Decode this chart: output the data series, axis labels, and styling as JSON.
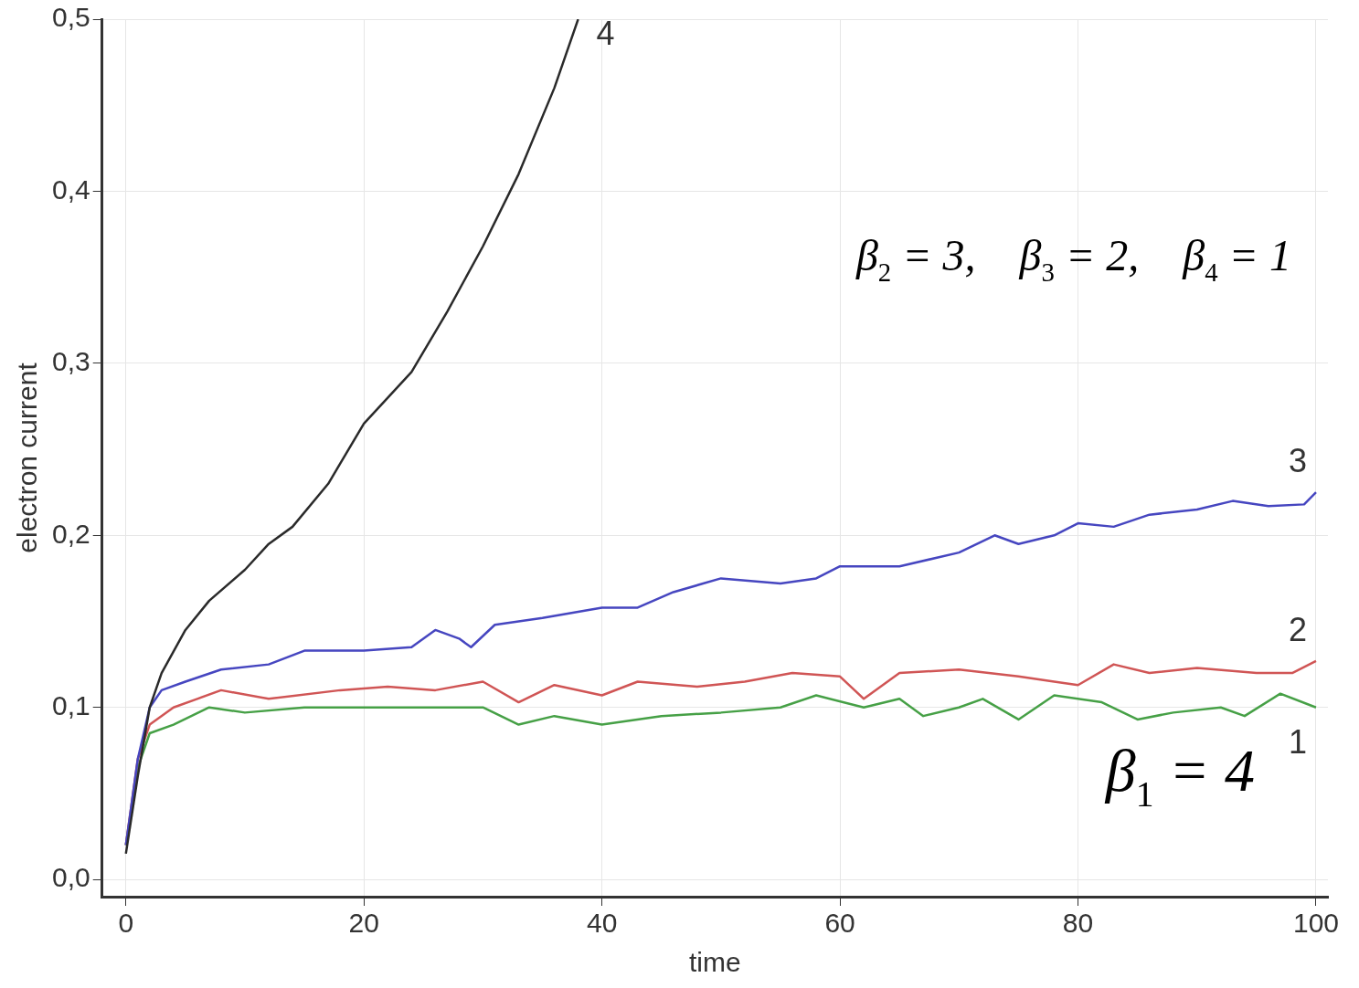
{
  "chart_data": {
    "type": "line",
    "xlabel": "time",
    "ylabel": "electron current",
    "xlim": [
      -2,
      101
    ],
    "ylim": [
      -0.01,
      0.5
    ],
    "xticks": [
      0,
      20,
      40,
      60,
      80,
      100
    ],
    "yticks": [
      {
        "value": 0,
        "label": "0,0"
      },
      {
        "value": 0.1,
        "label": "0,1"
      },
      {
        "value": 0.2,
        "label": "0,2"
      },
      {
        "value": 0.3,
        "label": "0,3"
      },
      {
        "value": 0.4,
        "label": "0,4"
      },
      {
        "value": 0.5,
        "label": "0,5"
      }
    ],
    "grid": true,
    "legend": false,
    "marker": "none",
    "line_style": "solid",
    "annotations": [
      "β$_{2}$ = 3,    β$_{3}$ = 2,    β$_{4}$ = 1",
      "β$_{1}$ = 4"
    ],
    "series": [
      {
        "name": "4",
        "color": "#2a2a2a",
        "x": [
          0,
          1,
          2,
          3,
          5,
          7,
          10,
          12,
          14,
          17,
          20,
          24,
          27,
          30,
          33,
          36,
          38
        ],
        "values": [
          0.015,
          0.06,
          0.1,
          0.12,
          0.145,
          0.162,
          0.18,
          0.195,
          0.205,
          0.23,
          0.265,
          0.295,
          0.33,
          0.368,
          0.41,
          0.46,
          0.5
        ]
      },
      {
        "name": "3",
        "color": "#4646c0",
        "x": [
          0,
          1,
          2,
          3,
          5,
          8,
          12,
          15,
          20,
          24,
          26,
          28,
          29,
          31,
          35,
          40,
          43,
          46,
          50,
          55,
          58,
          60,
          65,
          70,
          73,
          75,
          78,
          80,
          83,
          86,
          90,
          93,
          96,
          99,
          100
        ],
        "values": [
          0.02,
          0.07,
          0.1,
          0.11,
          0.115,
          0.122,
          0.125,
          0.133,
          0.133,
          0.135,
          0.145,
          0.14,
          0.135,
          0.148,
          0.152,
          0.158,
          0.158,
          0.167,
          0.175,
          0.172,
          0.175,
          0.182,
          0.182,
          0.19,
          0.2,
          0.195,
          0.2,
          0.207,
          0.205,
          0.212,
          0.215,
          0.22,
          0.217,
          0.218,
          0.225
        ]
      },
      {
        "name": "2",
        "color": "#d05555",
        "x": [
          0,
          1,
          2,
          4,
          6,
          8,
          12,
          18,
          22,
          26,
          30,
          33,
          36,
          40,
          43,
          48,
          52,
          56,
          60,
          62,
          65,
          70,
          75,
          78,
          80,
          83,
          86,
          90,
          95,
          98,
          100
        ],
        "values": [
          0.02,
          0.07,
          0.09,
          0.1,
          0.105,
          0.11,
          0.105,
          0.11,
          0.112,
          0.11,
          0.115,
          0.103,
          0.113,
          0.107,
          0.115,
          0.112,
          0.115,
          0.12,
          0.118,
          0.105,
          0.12,
          0.122,
          0.118,
          0.115,
          0.113,
          0.125,
          0.12,
          0.123,
          0.12,
          0.12,
          0.127
        ]
      },
      {
        "name": "1",
        "color": "#46a046",
        "x": [
          0,
          1,
          2,
          4,
          7,
          10,
          15,
          20,
          25,
          30,
          33,
          36,
          40,
          45,
          50,
          55,
          58,
          62,
          65,
          67,
          70,
          72,
          75,
          78,
          82,
          85,
          88,
          92,
          94,
          97,
          100
        ],
        "values": [
          0.02,
          0.065,
          0.085,
          0.09,
          0.1,
          0.097,
          0.1,
          0.1,
          0.1,
          0.1,
          0.09,
          0.095,
          0.09,
          0.095,
          0.097,
          0.1,
          0.107,
          0.1,
          0.105,
          0.095,
          0.1,
          0.105,
          0.093,
          0.107,
          0.103,
          0.093,
          0.097,
          0.1,
          0.095,
          0.108,
          0.1
        ]
      }
    ]
  }
}
